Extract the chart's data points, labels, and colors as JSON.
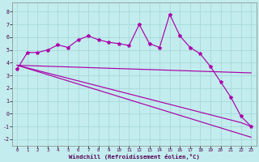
{
  "xlabel": "Windchill (Refroidissement éolien,°C)",
  "bg_color": "#c2eced",
  "grid_color": "#a8d8d8",
  "line_color": "#aa00aa",
  "xlim": [
    -0.5,
    23.5
  ],
  "ylim": [
    -2.5,
    8.7
  ],
  "xticks": [
    0,
    1,
    2,
    3,
    4,
    5,
    6,
    7,
    8,
    9,
    10,
    11,
    12,
    13,
    14,
    15,
    16,
    17,
    18,
    19,
    20,
    21,
    22,
    23
  ],
  "yticks": [
    -2,
    -1,
    0,
    1,
    2,
    3,
    4,
    5,
    6,
    7,
    8
  ],
  "line1_x": [
    0,
    1,
    2,
    3,
    4,
    5,
    6,
    7,
    8,
    9,
    10,
    11,
    12,
    13,
    14,
    15,
    16,
    17,
    18,
    19,
    20,
    21,
    22,
    23
  ],
  "line1_y": [
    3.5,
    4.8,
    4.8,
    5.0,
    5.4,
    5.2,
    5.8,
    6.1,
    5.8,
    5.6,
    5.5,
    5.35,
    7.0,
    5.5,
    5.2,
    7.8,
    6.1,
    5.2,
    4.7,
    3.7,
    2.5,
    1.3,
    -0.2,
    -1.0
  ],
  "line2_x": [
    0,
    23
  ],
  "line2_y": [
    3.8,
    3.2
  ],
  "line3_x": [
    0,
    23
  ],
  "line3_y": [
    3.8,
    -1.85
  ],
  "line4_x": [
    0,
    22,
    23
  ],
  "line4_y": [
    3.8,
    -0.7,
    -1.0
  ]
}
